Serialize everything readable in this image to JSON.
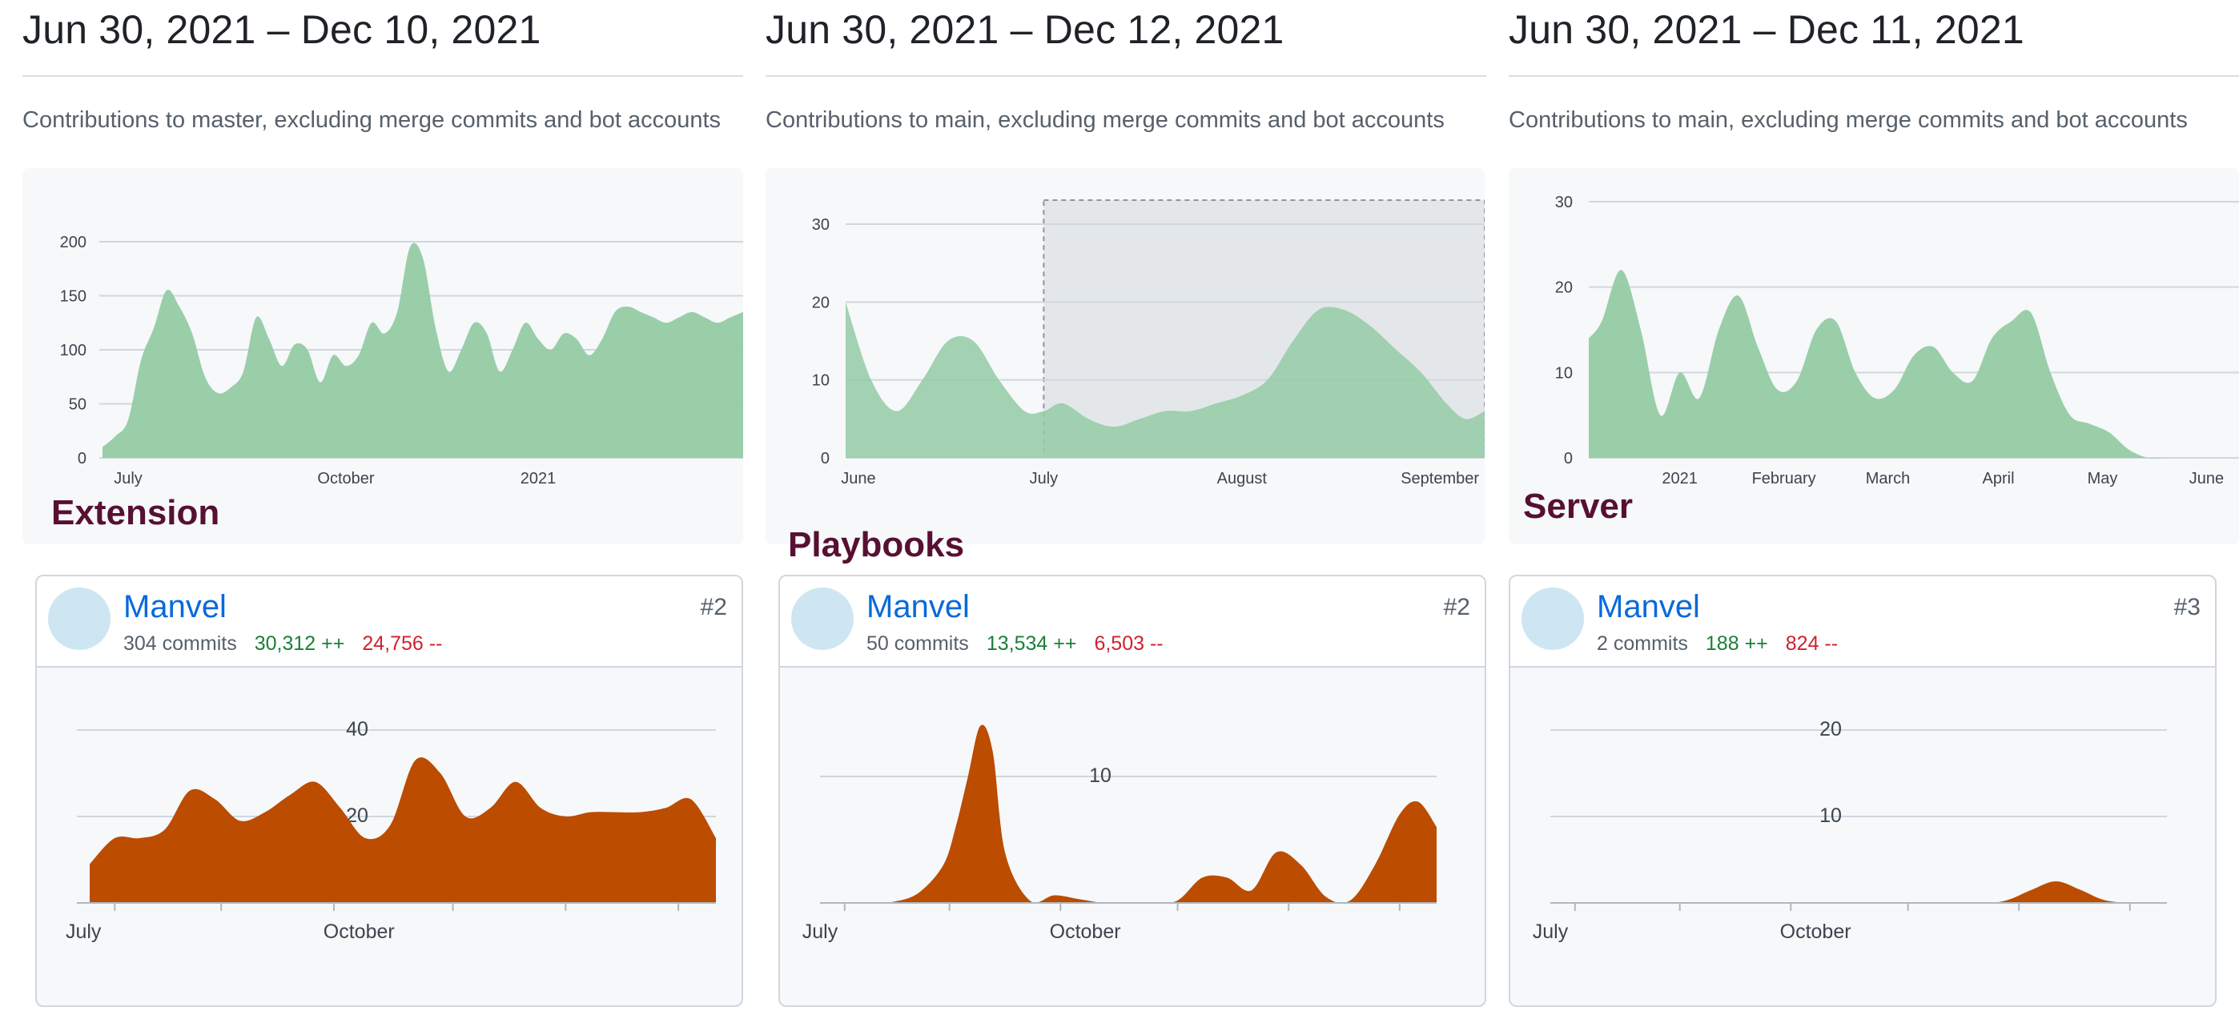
{
  "colors": {
    "area_green": "#94cba4",
    "area_user": "#bc4c00",
    "selection": "#e4e7ea",
    "link_blue": "#0969da",
    "additions": "#1a7f37",
    "deletions": "#cf222e",
    "repo_label": "#571032"
  },
  "panels": [
    {
      "range_title": "Jun 30, 2021 – Dec 10, 2021",
      "subtitle": "Contributions to master, excluding merge commits and bot accounts",
      "repo_label": "Extension",
      "user": {
        "name": "Manvel",
        "commits": "304 commits",
        "additions": "30,312 ++",
        "deletions": "24,756 --",
        "rank": "#2"
      }
    },
    {
      "range_title": "Jun 30, 2021 – Dec 12, 2021",
      "subtitle": "Contributions to main, excluding merge commits and bot accounts",
      "repo_label": "Playbooks",
      "user": {
        "name": "Manvel",
        "commits": "50 commits",
        "additions": "13,534 ++",
        "deletions": "6,503 --",
        "rank": "#2"
      }
    },
    {
      "range_title": "Jun 30, 2021 – Dec 11, 2021",
      "subtitle": "Contributions to main, excluding merge commits and bot accounts",
      "repo_label": "Server",
      "user": {
        "name": "Manvel",
        "commits": "2 commits",
        "additions": "188 ++",
        "deletions": "824 --",
        "rank": "#3"
      }
    }
  ],
  "chart_data": [
    {
      "type": "area",
      "ylim": [
        0,
        200
      ],
      "yticks": [
        0,
        50,
        100,
        150,
        200
      ],
      "x_ticks": [
        "July",
        "October",
        "2021"
      ],
      "x_positions": [
        0.04,
        0.38,
        0.68
      ],
      "x": [
        0,
        0.02,
        0.04,
        0.06,
        0.08,
        0.1,
        0.12,
        0.14,
        0.16,
        0.18,
        0.2,
        0.22,
        0.24,
        0.26,
        0.28,
        0.3,
        0.32,
        0.34,
        0.36,
        0.38,
        0.4,
        0.42,
        0.44,
        0.46,
        0.48,
        0.5,
        0.52,
        0.54,
        0.56,
        0.58,
        0.6,
        0.62,
        0.64,
        0.66,
        0.68,
        0.7,
        0.72,
        0.74,
        0.76,
        0.78,
        0.8,
        0.82,
        0.84,
        0.86,
        0.88,
        0.9,
        0.92,
        0.94,
        0.96,
        0.98,
        1
      ],
      "values": [
        10,
        20,
        35,
        90,
        120,
        155,
        140,
        115,
        75,
        60,
        65,
        80,
        130,
        110,
        85,
        105,
        100,
        70,
        95,
        85,
        95,
        125,
        115,
        135,
        195,
        185,
        120,
        80,
        100,
        125,
        115,
        80,
        100,
        125,
        110,
        100,
        115,
        110,
        95,
        110,
        135,
        140,
        135,
        130,
        125,
        130,
        135,
        130,
        125,
        130,
        135
      ]
    },
    {
      "type": "area",
      "ylim": [
        0,
        30
      ],
      "yticks": [
        0,
        10,
        20,
        30
      ],
      "x_ticks": [
        "June",
        "July",
        "August",
        "September"
      ],
      "x_positions": [
        0.02,
        0.31,
        0.62,
        0.93
      ],
      "selection_range": [
        0.31,
        1.0
      ],
      "x": [
        0,
        0.04,
        0.08,
        0.12,
        0.16,
        0.2,
        0.24,
        0.28,
        0.31,
        0.34,
        0.38,
        0.42,
        0.46,
        0.5,
        0.54,
        0.58,
        0.62,
        0.66,
        0.7,
        0.74,
        0.78,
        0.82,
        0.86,
        0.9,
        0.94,
        0.97,
        1
      ],
      "values": [
        20,
        10,
        6,
        10,
        15,
        15,
        10,
        6,
        6,
        7,
        5,
        4,
        5,
        6,
        6,
        7,
        8,
        10,
        15,
        19,
        19,
        17,
        14,
        11,
        7,
        5,
        6
      ]
    },
    {
      "type": "area",
      "ylim": [
        0,
        30
      ],
      "yticks": [
        0,
        10,
        20,
        30
      ],
      "x_ticks": [
        "2021",
        "February",
        "March",
        "April",
        "May",
        "June"
      ],
      "x_positions": [
        0.14,
        0.3,
        0.46,
        0.63,
        0.79,
        0.95
      ],
      "x": [
        0,
        0.02,
        0.05,
        0.08,
        0.11,
        0.14,
        0.17,
        0.2,
        0.23,
        0.26,
        0.29,
        0.32,
        0.35,
        0.38,
        0.41,
        0.44,
        0.47,
        0.5,
        0.53,
        0.56,
        0.59,
        0.62,
        0.65,
        0.68,
        0.71,
        0.74,
        0.77,
        0.8,
        0.83,
        0.86,
        0.89,
        0.92,
        0.95,
        0.98,
        1
      ],
      "values": [
        14,
        16,
        22,
        15,
        5,
        10,
        7,
        15,
        19,
        13,
        8,
        9,
        15,
        16,
        10,
        7,
        8,
        12,
        13,
        10,
        9,
        14,
        16,
        17,
        10,
        5,
        4,
        3,
        1,
        0,
        0,
        0,
        0,
        0,
        0
      ]
    },
    {
      "type": "area",
      "ylim": [
        0,
        40
      ],
      "yticks": [
        20,
        40
      ],
      "x_ticks": [
        "July",
        "October"
      ],
      "x": [
        0,
        0.04,
        0.08,
        0.12,
        0.16,
        0.2,
        0.24,
        0.28,
        0.32,
        0.36,
        0.4,
        0.44,
        0.48,
        0.52,
        0.56,
        0.6,
        0.64,
        0.68,
        0.72,
        0.76,
        0.8,
        0.84,
        0.88,
        0.92,
        0.96,
        1
      ],
      "values": [
        9,
        15,
        15,
        17,
        26,
        24,
        19,
        21,
        25,
        28,
        22,
        15,
        18,
        33,
        30,
        20,
        22,
        28,
        22,
        20,
        21,
        21,
        21,
        22,
        24,
        15
      ]
    },
    {
      "type": "area",
      "ylim": [
        0,
        10
      ],
      "yticks": [
        10
      ],
      "x_ticks": [
        "July",
        "October"
      ],
      "x": [
        0,
        0.04,
        0.08,
        0.12,
        0.16,
        0.2,
        0.22,
        0.24,
        0.26,
        0.28,
        0.3,
        0.34,
        0.38,
        0.42,
        0.46,
        0.5,
        0.54,
        0.58,
        0.62,
        0.66,
        0.7,
        0.74,
        0.78,
        0.82,
        0.86,
        0.9,
        0.94,
        0.97,
        1
      ],
      "values": [
        0,
        0,
        0,
        0.1,
        0.8,
        3,
        6,
        10,
        14,
        12,
        4,
        0.2,
        0.6,
        0.3,
        0,
        0,
        0,
        0.2,
        2,
        2,
        1,
        4,
        3,
        0.5,
        0.2,
        3,
        7,
        8,
        6
      ]
    },
    {
      "type": "area",
      "ylim": [
        0,
        20
      ],
      "yticks": [
        10,
        20
      ],
      "x_ticks": [
        "July",
        "October"
      ],
      "x": [
        0,
        0.1,
        0.2,
        0.3,
        0.4,
        0.5,
        0.6,
        0.7,
        0.74,
        0.78,
        0.82,
        0.86,
        0.9,
        0.95,
        1
      ],
      "values": [
        0,
        0,
        0,
        0,
        0,
        0,
        0,
        0,
        0.3,
        1.5,
        2.5,
        1.5,
        0.3,
        0,
        0
      ]
    }
  ]
}
